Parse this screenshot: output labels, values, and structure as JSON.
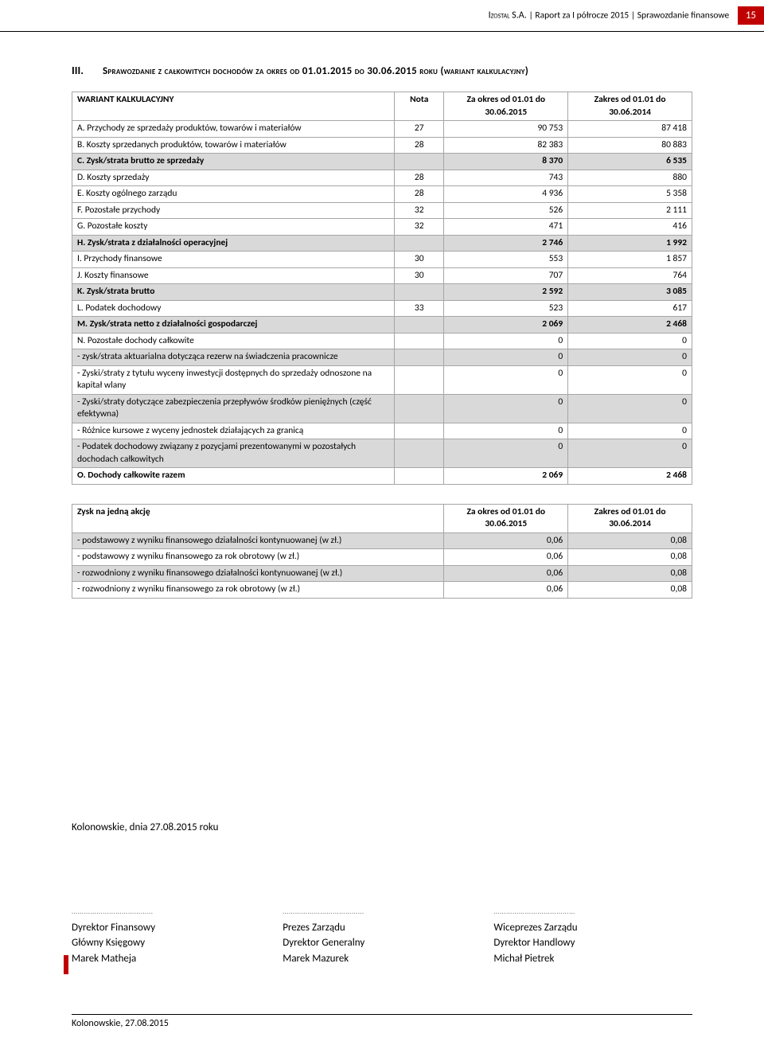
{
  "header": {
    "company": "Izostal S.A.",
    "text": "Raport za I półrocze 2015 | Sprawozdanie finansowe",
    "page_number": "15"
  },
  "section": {
    "roman": "III.",
    "title": "Sprawozdanie z całkowitych dochodów za okres od 01.01.2015 do 30.06.2015 roku (wariant kalkulacyjny)"
  },
  "table1": {
    "headers": [
      "WARIANT KALKULACYJNY",
      "Nota",
      "Za okres od 01.01 do 30.06.2015",
      "Zakres od 01.01 do 30.06.2014"
    ],
    "col_widths": [
      "52%",
      "8%",
      "20%",
      "20%"
    ],
    "rows": [
      {
        "label": "A. Przychody ze sprzedaży produktów, towarów i materiałów",
        "nota": "27",
        "v1": "90 753",
        "v2": "87 418",
        "bold": false,
        "shade": false
      },
      {
        "label": "B. Koszty sprzedanych produktów, towarów i materiałów",
        "nota": "28",
        "v1": "82 383",
        "v2": "80 883",
        "bold": false,
        "shade": false
      },
      {
        "label": "C. Zysk/strata brutto ze sprzedaży",
        "nota": "",
        "v1": "8 370",
        "v2": "6 535",
        "bold": true,
        "shade": true
      },
      {
        "label": "D. Koszty sprzedaży",
        "nota": "28",
        "v1": "743",
        "v2": "880",
        "bold": false,
        "shade": false
      },
      {
        "label": "E. Koszty ogólnego zarządu",
        "nota": "28",
        "v1": "4 936",
        "v2": "5 358",
        "bold": false,
        "shade": false
      },
      {
        "label": "F. Pozostałe przychody",
        "nota": "32",
        "v1": "526",
        "v2": "2 111",
        "bold": false,
        "shade": false
      },
      {
        "label": "G. Pozostałe koszty",
        "nota": "32",
        "v1": "471",
        "v2": "416",
        "bold": false,
        "shade": false
      },
      {
        "label": "H. Zysk/strata z działalności operacyjnej",
        "nota": "",
        "v1": "2 746",
        "v2": "1 992",
        "bold": true,
        "shade": true
      },
      {
        "label": "I. Przychody finansowe",
        "nota": "30",
        "v1": "553",
        "v2": "1 857",
        "bold": false,
        "shade": false
      },
      {
        "label": "J. Koszty finansowe",
        "nota": "30",
        "v1": "707",
        "v2": "764",
        "bold": false,
        "shade": false
      },
      {
        "label": "K. Zysk/strata brutto",
        "nota": "",
        "v1": "2 592",
        "v2": "3 085",
        "bold": true,
        "shade": true
      },
      {
        "label": "L. Podatek dochodowy",
        "nota": "33",
        "v1": "523",
        "v2": "617",
        "bold": false,
        "shade": false
      },
      {
        "label": "M. Zysk/strata netto z działalności gospodarczej",
        "nota": "",
        "v1": "2 069",
        "v2": "2 468",
        "bold": true,
        "shade": true
      },
      {
        "label": "N. Pozostałe dochody całkowite",
        "nota": "",
        "v1": "0",
        "v2": "0",
        "bold": false,
        "shade": false
      },
      {
        "label": "- zysk/strata aktuarialna dotycząca rezerw na świadczenia pracownicze",
        "nota": "",
        "v1": "0",
        "v2": "0",
        "bold": false,
        "shade": true
      },
      {
        "label": "- Zyski/straty z tytułu wyceny inwestycji dostępnych do sprzedaży odnoszone na kapitał wlany",
        "nota": "",
        "v1": "0",
        "v2": "0",
        "bold": false,
        "shade": false
      },
      {
        "label": "- Zyski/straty dotyczące zabezpieczenia przepływów środków pieniężnych (część efektywna)",
        "nota": "",
        "v1": "0",
        "v2": "0",
        "bold": false,
        "shade": true
      },
      {
        "label": "- Różnice kursowe z wyceny jednostek działających za granicą",
        "nota": "",
        "v1": "0",
        "v2": "0",
        "bold": false,
        "shade": false
      },
      {
        "label": "- Podatek dochodowy związany z pozycjami prezentowanymi w pozostałych dochodach całkowitych",
        "nota": "",
        "v1": "0",
        "v2": "0",
        "bold": false,
        "shade": true
      },
      {
        "label": "O. Dochody całkowite razem",
        "nota": "",
        "v1": "2 069",
        "v2": "2 468",
        "bold": true,
        "shade": false
      }
    ]
  },
  "table2": {
    "headers": [
      "Zysk na jedną akcję",
      "Za okres od 01.01 do 30.06.2015",
      "Zakres od 01.01 do 30.06.2014"
    ],
    "col_widths": [
      "60%",
      "20%",
      "20%"
    ],
    "rows": [
      {
        "label": "- podstawowy z wyniku finansowego działalności kontynuowanej (w zł.)",
        "v1": "0,06",
        "v2": "0,08",
        "shade": true
      },
      {
        "label": "- podstawowy z wyniku finansowego za rok obrotowy (w zł.)",
        "v1": "0,06",
        "v2": "0,08",
        "shade": false
      },
      {
        "label": "- rozwodniony z wyniku finansowego działalności kontynuowanej (w zł.)",
        "v1": "0,06",
        "v2": "0,08",
        "shade": true
      },
      {
        "label": "- rozwodniony z wyniku finansowego za rok obrotowy (w zł.)",
        "v1": "0,06",
        "v2": "0,08",
        "shade": false
      }
    ]
  },
  "footer": {
    "date_line": "Kolonowskie, dnia 27.08.2015 roku",
    "sigs": [
      {
        "title": "Dyrektor Finansowy",
        "sub": "Główny Księgowy",
        "name": "Marek Matheja"
      },
      {
        "title": "Prezes Zarządu",
        "sub": "Dyrektor Generalny",
        "name": "Marek Mazurek"
      },
      {
        "title": "Wiceprezes Zarządu",
        "sub": "Dyrektor Handlowy",
        "name": "Michał Pietrek"
      }
    ],
    "bottom": "Kolonowskie, 27.08.2015"
  },
  "colors": {
    "accent": "#c00000",
    "shade": "#d9d9d9",
    "border": "#a6a6a6"
  }
}
